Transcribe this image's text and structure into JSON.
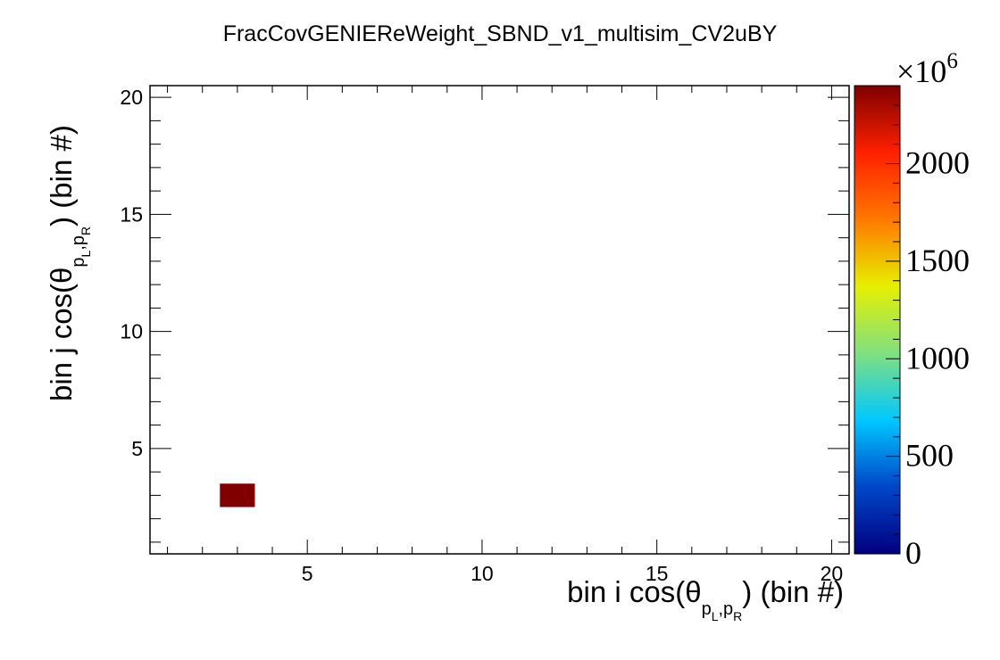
{
  "chart_data": {
    "type": "heatmap",
    "title": "FracCovGENIEReWeight_SBND_v1_multisim_CV2uBY",
    "xlabel": {
      "prefix": "bin i cos(θ",
      "sub_left": "p",
      "sub_left_index": "L",
      "sub_sep": ",",
      "sub_right": "p",
      "sub_right_index": "R",
      "suffix": ") (bin #)"
    },
    "ylabel": {
      "prefix": "bin j cos(θ",
      "sub_left": "p",
      "sub_left_index": "L",
      "sub_sep": ",",
      "sub_right": "p",
      "sub_right_index": "R",
      "suffix": ") (bin #)"
    },
    "xlim": [
      0.5,
      20.5
    ],
    "ylim": [
      0.5,
      20.5
    ],
    "x_ticks": [
      5,
      10,
      15,
      20
    ],
    "y_ticks": [
      5,
      10,
      15,
      20
    ],
    "cells": [
      {
        "x": 3,
        "y": 3,
        "value": 2400000000
      }
    ],
    "colorbar": {
      "min": 0,
      "max": 2400,
      "multiplier_label": "×10",
      "multiplier_exponent": "6",
      "ticks": [
        0,
        500,
        1000,
        1500,
        2000
      ],
      "colors": [
        "#000080",
        "#0046c8",
        "#00c8ff",
        "#80e080",
        "#e6f000",
        "#ff7800",
        "#ff2000",
        "#800000"
      ]
    },
    "grid": false
  }
}
